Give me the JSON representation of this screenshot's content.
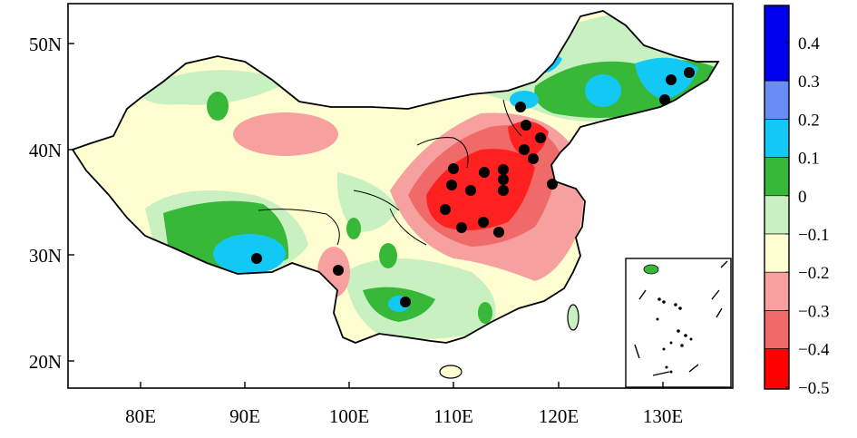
{
  "map": {
    "lat_labels": [
      "50N",
      "40N",
      "30N",
      "20N"
    ],
    "lon_labels": [
      "80E",
      "90E",
      "100E",
      "110E",
      "120E",
      "130E"
    ]
  },
  "colorbar": {
    "labels": [
      "0.4",
      "0.3",
      "0.2",
      "0.1",
      "0",
      "−0.1",
      "−0.2",
      "−0.3",
      "−0.4",
      "−0.5"
    ],
    "colors": [
      "#0000ee",
      "#6a8cf5",
      "#12c8f5",
      "#38b838",
      "#c8f0c0",
      "#fefed0",
      "#f7a0a0",
      "#f06a6a",
      "#ff0000"
    ]
  },
  "legend_colors": {
    "background": "#fefed0",
    "land_outline": "#000000",
    "dot": "#000000"
  }
}
